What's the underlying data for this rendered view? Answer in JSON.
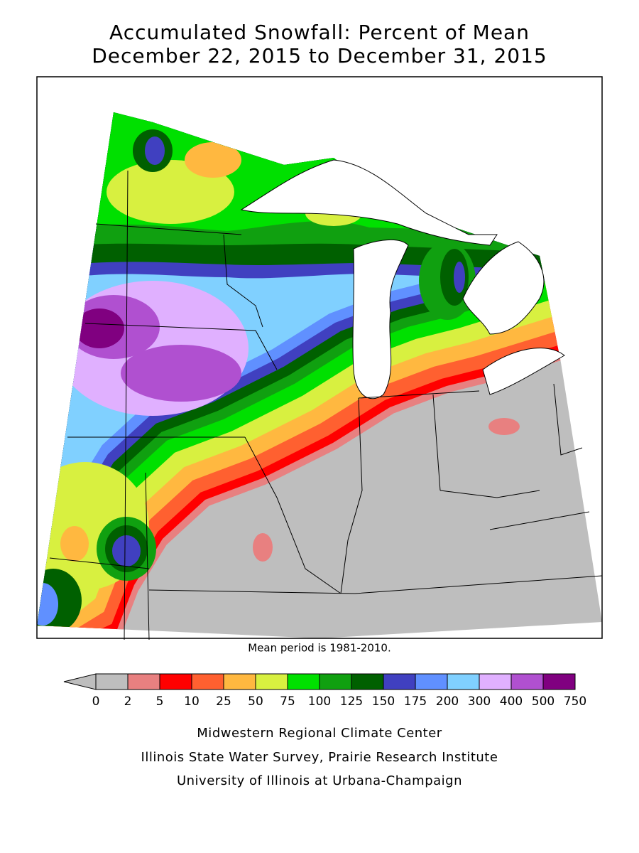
{
  "header": {
    "title": "Accumulated Snowfall: Percent of Mean",
    "subtitle": "December 22, 2015 to December 31, 2015"
  },
  "map": {
    "note": "Mean period is 1981-2010."
  },
  "legend": {
    "bins": [
      0,
      2,
      5,
      10,
      25,
      50,
      75,
      100,
      125,
      150,
      175,
      200,
      300,
      400,
      500,
      750
    ],
    "colors": [
      "#bebebe",
      "#e88080",
      "#ff0000",
      "#ff6030",
      "#ffb840",
      "#d8f040",
      "#00e000",
      "#10a010",
      "#006000",
      "#4040c0",
      "#6090ff",
      "#80d0ff",
      "#e0b0ff",
      "#b050d0",
      "#800080"
    ],
    "underflow_color": "#bebebe"
  },
  "footer": {
    "lines": [
      "Midwestern Regional Climate Center",
      "Illinois State Water Survey, Prairie Research Institute",
      "University of Illinois at Urbana-Champaign"
    ]
  }
}
